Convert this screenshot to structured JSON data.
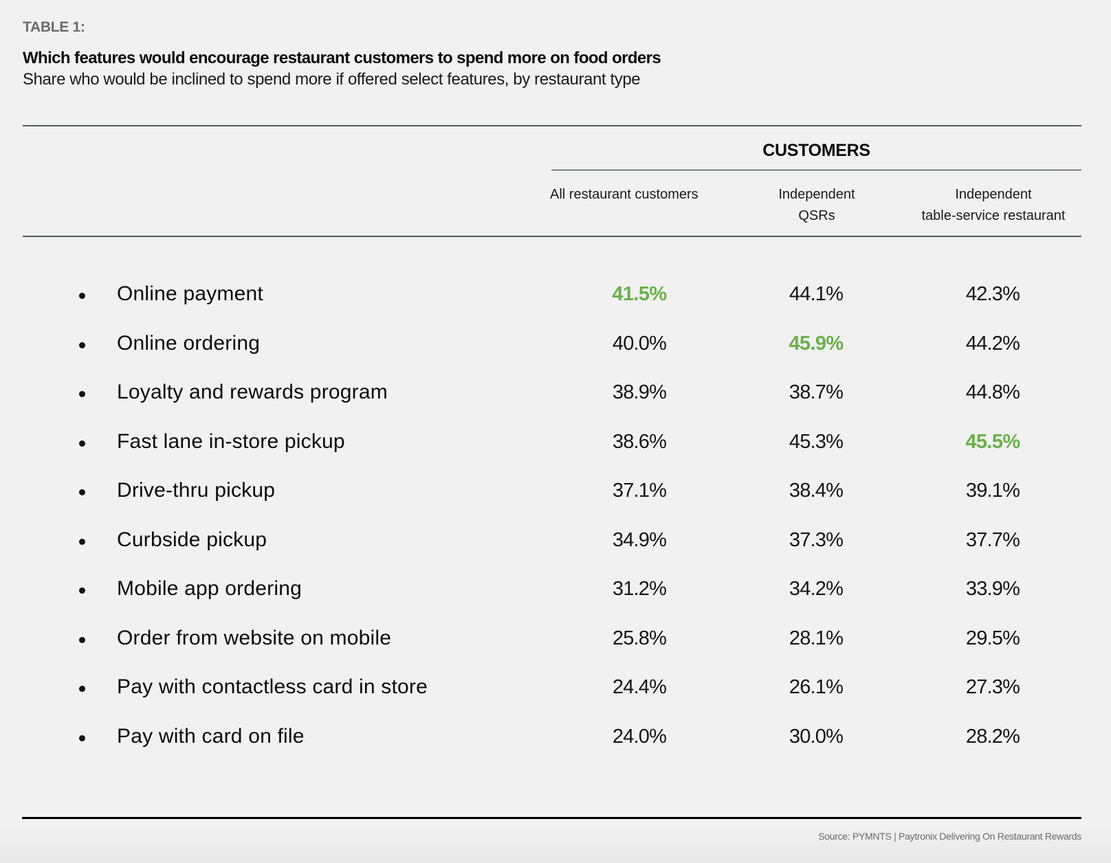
{
  "table_label": "TABLE 1:",
  "title": "Which features would encourage restaurant customers to spend more on food orders",
  "subtitle": "Share who would be inclined to spend more if offered select features, by restaurant type",
  "highlight_color": "#6ab04c",
  "source": "Source: PYMNTS | Paytronix Delivering On Restaurant Rewards",
  "chart_data": {
    "type": "table",
    "title": "Which features would encourage restaurant customers to spend more on food orders",
    "subtitle": "Share who would be inclined to spend more if offered select features, by restaurant type",
    "group_header": "CUSTOMERS",
    "columns": [
      "All restaurant customers",
      "Independent\nQSRs",
      "Independent\ntable-service restaurant"
    ],
    "rows": [
      {
        "label": "Online payment",
        "values": [
          "41.5%",
          "44.1%",
          "42.3%"
        ],
        "highlight": [
          true,
          false,
          false
        ]
      },
      {
        "label": "Online ordering",
        "values": [
          "40.0%",
          "45.9%",
          "44.2%"
        ],
        "highlight": [
          false,
          true,
          false
        ]
      },
      {
        "label": "Loyalty and rewards program",
        "values": [
          "38.9%",
          "38.7%",
          "44.8%"
        ],
        "highlight": [
          false,
          false,
          false
        ]
      },
      {
        "label": "Fast lane in-store pickup",
        "values": [
          "38.6%",
          "45.3%",
          "45.5%"
        ],
        "highlight": [
          false,
          false,
          true
        ]
      },
      {
        "label": "Drive-thru pickup",
        "values": [
          "37.1%",
          "38.4%",
          "39.1%"
        ],
        "highlight": [
          false,
          false,
          false
        ]
      },
      {
        "label": "Curbside pickup",
        "values": [
          "34.9%",
          "37.3%",
          "37.7%"
        ],
        "highlight": [
          false,
          false,
          false
        ]
      },
      {
        "label": "Mobile app ordering",
        "values": [
          "31.2%",
          "34.2%",
          "33.9%"
        ],
        "highlight": [
          false,
          false,
          false
        ]
      },
      {
        "label": "Order from website on mobile",
        "values": [
          "25.8%",
          "28.1%",
          "29.5%"
        ],
        "highlight": [
          false,
          false,
          false
        ]
      },
      {
        "label": "Pay with contactless card in store",
        "values": [
          "24.4%",
          "26.1%",
          "27.3%"
        ],
        "highlight": [
          false,
          false,
          false
        ]
      },
      {
        "label": "Pay with card on file",
        "values": [
          "24.0%",
          "30.0%",
          "28.2%"
        ],
        "highlight": [
          false,
          false,
          false
        ]
      }
    ]
  }
}
